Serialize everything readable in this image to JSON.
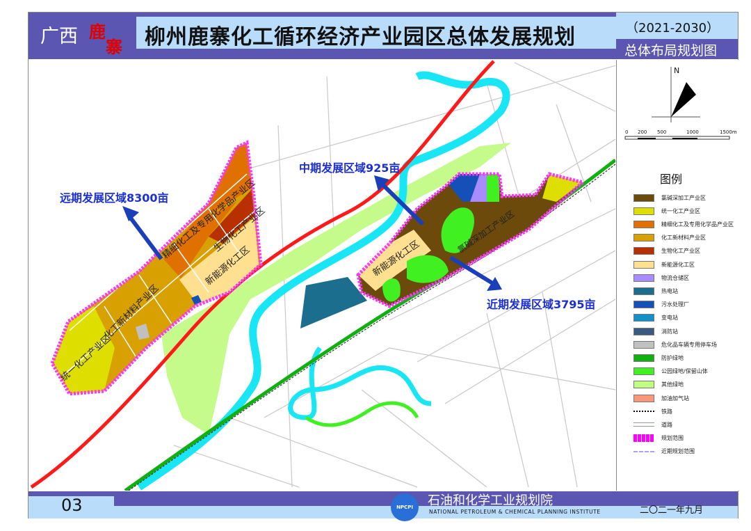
{
  "header": {
    "region": "广西",
    "brand_char1": "鹿",
    "brand_char2": "寨",
    "title": "柳州鹿寨化工循环经济产业园区总体发展规划",
    "year_range": "（2021-2030）",
    "subtitle": "总体布局规划图"
  },
  "map": {
    "callouts": {
      "far_term": "远期发展区域8300亩",
      "mid_term": "中期发展区域925亩",
      "near_term": "近期发展区域3795亩"
    },
    "zone_labels": {
      "fine_chem": "精细化工及专用化学品产业区",
      "bio_chem": "生物化工产业区",
      "new_energy_west": "新能源化工区",
      "new_material": "化工新材料产业区",
      "unified_chem": "统一化工产业区",
      "new_energy_east": "新能源化工区",
      "chlor_alkali": "氯碱深加工产业区"
    },
    "colors": {
      "route_red": "#ff1a1a",
      "river": "#19e6f5",
      "boundary": "#ff33ff",
      "callout": "#1b2fd6"
    }
  },
  "compass": {
    "north": "N",
    "scale_labels": [
      "0",
      "200",
      "500",
      "1000",
      "1500m"
    ]
  },
  "legend": {
    "title": "图例",
    "items": [
      {
        "label": "氯碱深加工产业区",
        "color": "#6b4a0c"
      },
      {
        "label": "统一化工产业区",
        "color": "#dede00"
      },
      {
        "label": "精细化工及专用化学品产业区",
        "color": "#e07000"
      },
      {
        "label": "化工新材料产业区",
        "color": "#d8a000"
      },
      {
        "label": "生物化工产业区",
        "color": "#b83000"
      },
      {
        "label": "新能源化工区",
        "color": "#ffe090"
      },
      {
        "label": "物流仓储区",
        "color": "#a78bff"
      },
      {
        "label": "热电站",
        "color": "#1c6e8e"
      },
      {
        "label": "污水处理厂",
        "color": "#1550b8"
      },
      {
        "label": "变电站",
        "color": "#1090c8"
      },
      {
        "label": "消防站",
        "color": "#3a5a80"
      },
      {
        "label": "危化品车辆专用停车场",
        "color": "#c0c0c0"
      },
      {
        "label": "防护绿地",
        "color": "#10b010"
      },
      {
        "label": "公园绿地/保留山体",
        "color": "#40f020"
      },
      {
        "label": "其他绿地",
        "color": "#c0ff80"
      },
      {
        "label": "加油加气站",
        "color": "#f89878"
      },
      {
        "label": "铁路",
        "color": "#000000"
      },
      {
        "label": "道路",
        "color": "#bbbbbb"
      },
      {
        "label": "规划范围",
        "color": "#ff00ff"
      },
      {
        "label": "近期规划范围",
        "color": "#a8a0ff"
      }
    ]
  },
  "footer": {
    "page_number": "03",
    "logo_text": "NPCPI",
    "org_name": "石油和化学工业规划院",
    "org_name_en": "NATIONAL PETROLEUM & CHEMICAL PLANNING INSTITUTE",
    "date": "二〇二一年九月"
  }
}
